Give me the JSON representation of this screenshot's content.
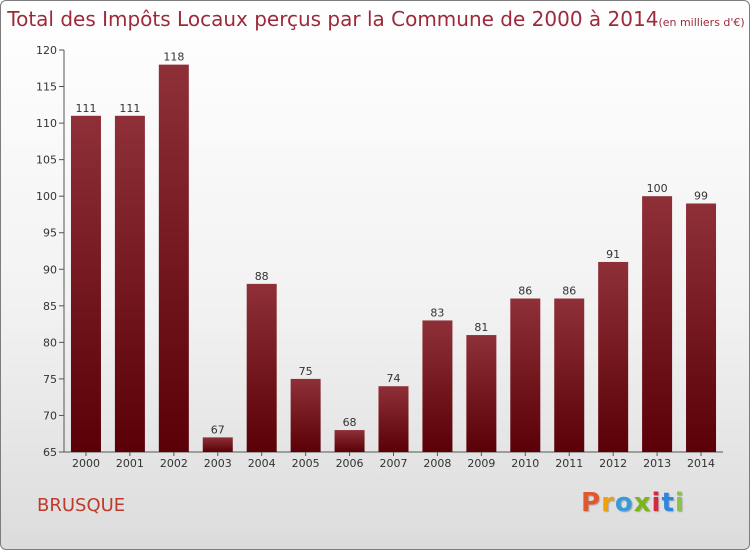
{
  "title": "Total des Impôts Locaux perçus par la Commune de 2000 à 2014",
  "title_unit": "(en milliers d'€)",
  "commune": "BRUSQUE",
  "logo": {
    "letters": [
      "P",
      "r",
      "o",
      "x",
      "i",
      "t",
      "i"
    ],
    "colors": [
      "#e4572e",
      "#f2a007",
      "#3a9ad9",
      "#7cb518",
      "#d7263d",
      "#2e86de",
      "#8bc34a"
    ]
  },
  "chart_data": {
    "type": "bar",
    "categories": [
      "2000",
      "2001",
      "2002",
      "2003",
      "2004",
      "2005",
      "2006",
      "2007",
      "2008",
      "2009",
      "2010",
      "2011",
      "2012",
      "2013",
      "2014"
    ],
    "values": [
      111,
      111,
      118,
      67,
      88,
      75,
      68,
      74,
      83,
      81,
      86,
      86,
      91,
      100,
      99
    ],
    "ylim": [
      65,
      120
    ],
    "yticks": [
      65,
      70,
      75,
      80,
      85,
      90,
      95,
      100,
      105,
      110,
      115,
      120
    ],
    "bar_color": "#7a1a22",
    "grid": false
  }
}
